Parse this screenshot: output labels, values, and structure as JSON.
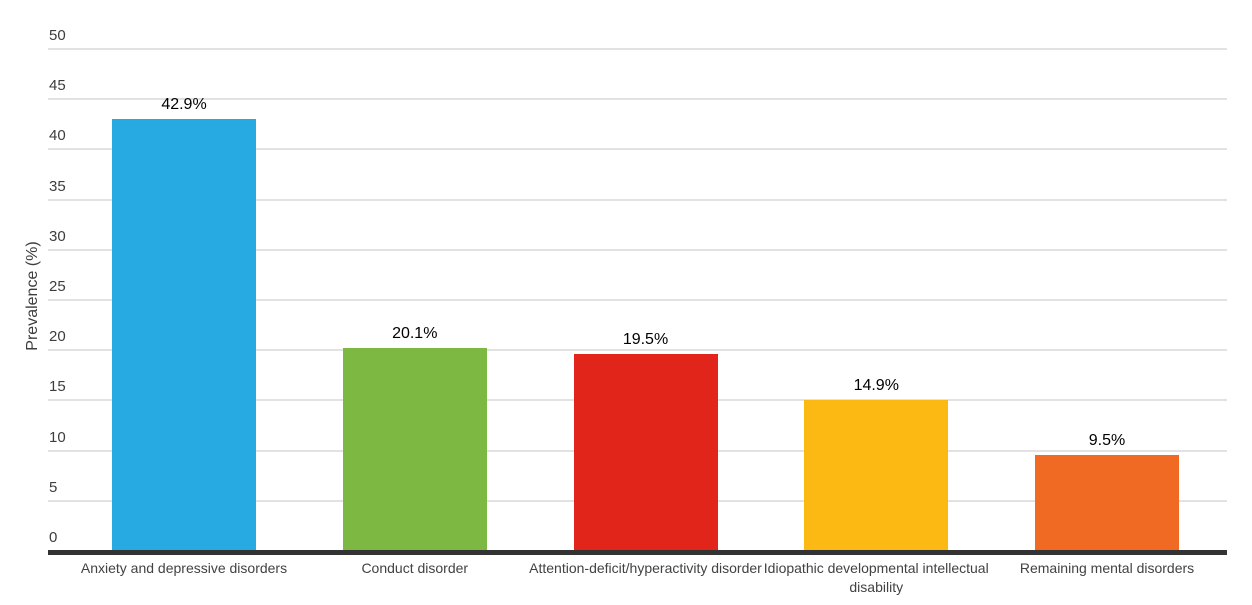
{
  "chart_data": {
    "type": "bar",
    "title": "",
    "xlabel": "",
    "ylabel": "Prevalence (%)",
    "categories": [
      "Anxiety and depressive disorders",
      "Conduct disorder",
      "Attention-deficit/hyperactivity disorder",
      "Idiopathic developmental intellectual disability",
      "Remaining mental disorders"
    ],
    "values": [
      42.9,
      20.1,
      19.5,
      14.9,
      9.5
    ],
    "value_labels": [
      "42.9%",
      "20.1%",
      "19.5%",
      "14.9%",
      "9.5%"
    ],
    "bar_colors": [
      "#27AAE1",
      "#7CB842",
      "#E1251B",
      "#FDB913",
      "#F16A24"
    ],
    "ylim": [
      0,
      50
    ],
    "yticks": [
      0,
      5,
      10,
      15,
      20,
      25,
      30,
      35,
      40,
      45,
      50
    ],
    "grid": true,
    "legend": "none"
  },
  "colors": {
    "background": "#ffffff",
    "gridline": "#e2e2e2",
    "axis_line": "#333333",
    "tick_text": "#3d3d3d",
    "category_text": "#424242",
    "value_text": "#000000"
  }
}
